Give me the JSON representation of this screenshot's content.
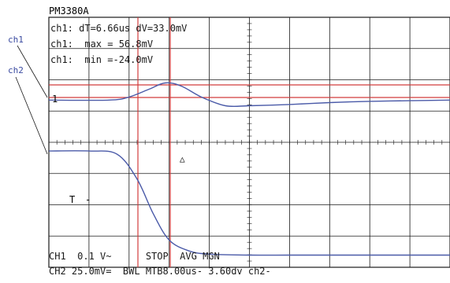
{
  "colors": {
    "background": "#ffffff",
    "grid": "#1a1a1a",
    "trace": "#4a5aa8",
    "cursor": "#d23c3c",
    "text": "#1a1a1a",
    "label": "#3a4aa0"
  },
  "header": {
    "model": "PM3380A"
  },
  "channel_labels": {
    "ch1": "ch1",
    "ch2": "ch2"
  },
  "readouts": [
    "ch1: dT=6.66us dV=33.0mV",
    "ch1:  max = 56.8mV",
    "ch1:  min =-24.0mV"
  ],
  "markers": {
    "ch1_ground": "1",
    "trigger": "T",
    "trigger_dash": "-",
    "trigger_arrow": "△"
  },
  "status": {
    "line1": "CH1  0.1 V~      STOP  AVG MGN",
    "line2": "CH2 25.0mV=  BWL MTB8.00us- 3.60dv ch2-"
  },
  "chart_data": {
    "type": "line",
    "xlabel": "",
    "ylabel": "",
    "grid": true,
    "x_divisions": 10,
    "y_divisions": 8,
    "x_per_div": "8.00us",
    "series": [
      {
        "x": [
          0,
          1.5,
          2.0,
          2.5,
          2.9,
          3.3,
          3.8,
          4.4,
          5.0,
          6.0,
          7.0,
          8.0,
          9.0,
          10.0
        ],
        "y": [
          0,
          0,
          0.1,
          0.35,
          0.55,
          0.45,
          0.1,
          -0.18,
          -0.18,
          -0.14,
          -0.08,
          -0.04,
          -0.02,
          0
        ],
        "offset_div": 5.35
      },
      {
        "x": [
          0,
          1.0,
          1.7,
          2.2,
          2.6,
          3.0,
          3.5,
          4.0,
          5.0,
          6.0,
          7.0,
          8.0,
          9.0,
          10.0
        ],
        "y": [
          0,
          0,
          -0.1,
          -0.9,
          -2.0,
          -2.85,
          -3.2,
          -3.3,
          -3.33,
          -3.33,
          -3.33,
          -3.33,
          -3.33,
          -3.33
        ],
        "offset_div": 3.72
      }
    ]
  }
}
